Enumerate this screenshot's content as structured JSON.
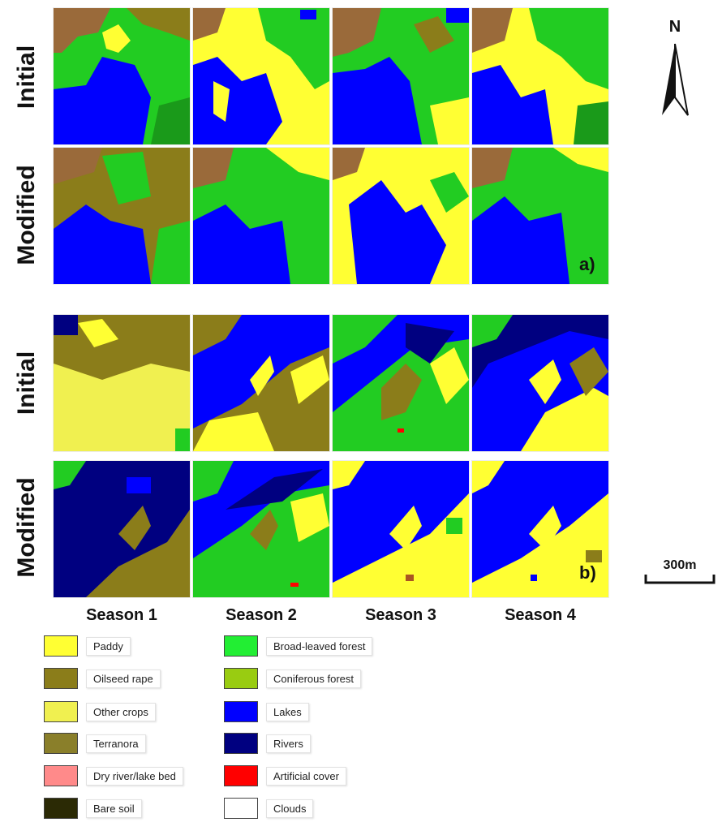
{
  "panels": [
    {
      "tag": "a)",
      "rows": [
        "Initial",
        "Modified"
      ]
    },
    {
      "tag": "b)",
      "rows": [
        "Initial",
        "Modified"
      ]
    }
  ],
  "seasons": [
    "Season 1",
    "Season 2",
    "Season 3",
    "Season 4"
  ],
  "north_label": "N",
  "scale_label": "300m",
  "legend": [
    {
      "label": "Paddy",
      "color": "#ffff33"
    },
    {
      "label": "Oilseed rape",
      "color": "#8b7d1a"
    },
    {
      "label": "Other crops",
      "color": "#f0f050"
    },
    {
      "label": "Terranora",
      "color": "#8a7f2a"
    },
    {
      "label": "Dry river/lake bed",
      "color": "#ff8a8a"
    },
    {
      "label": "Bare soil",
      "color": "#2b2a05"
    },
    {
      "label": "Broad-leaved forest",
      "color": "#22ee33"
    },
    {
      "label": "Coniferous forest",
      "color": "#99cc11"
    },
    {
      "label": "Lakes",
      "color": "#0000ff"
    },
    {
      "label": "Rivers",
      "color": "#000080"
    },
    {
      "label": "Artificial cover",
      "color": "#ff0000"
    },
    {
      "label": "Clouds",
      "color": "#ffffff"
    }
  ]
}
